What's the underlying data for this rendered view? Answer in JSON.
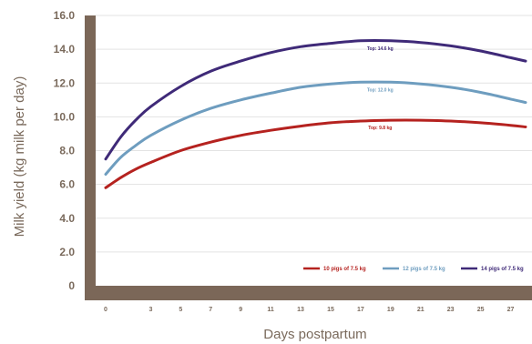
{
  "chart_data": {
    "type": "line",
    "xlabel": "Days postpartum",
    "ylabel": "Milk yield (kg milk per day)",
    "ylim": [
      0,
      16
    ],
    "yticks": [
      "0",
      "2.0",
      "4.0",
      "6.0",
      "8.0",
      "10.0",
      "12.0",
      "14.0",
      "16.0"
    ],
    "xticks": [
      "0",
      "3",
      "5",
      "7",
      "9",
      "11",
      "13",
      "15",
      "17",
      "19",
      "21",
      "23",
      "25",
      "27"
    ],
    "grid": true,
    "legend_position": "bottom-right",
    "series": [
      {
        "name": "10 pigs of 7.5 kg",
        "color": "#b5221f",
        "x": [
          0,
          1,
          2,
          3,
          5,
          7,
          9,
          11,
          13,
          15,
          17,
          19,
          21,
          23,
          25,
          27,
          28
        ],
        "values": [
          5.8,
          6.4,
          6.9,
          7.3,
          8.0,
          8.5,
          8.9,
          9.2,
          9.45,
          9.65,
          9.75,
          9.8,
          9.8,
          9.75,
          9.65,
          9.5,
          9.4
        ],
        "peak_label": "Top: 9.8 kg"
      },
      {
        "name": "12 pigs of 7.5 kg",
        "color": "#6e9dbf",
        "x": [
          0,
          1,
          2,
          3,
          5,
          7,
          9,
          11,
          13,
          15,
          17,
          19,
          21,
          23,
          25,
          27,
          28
        ],
        "values": [
          6.6,
          7.6,
          8.3,
          8.9,
          9.8,
          10.5,
          11.0,
          11.4,
          11.75,
          11.95,
          12.05,
          12.05,
          11.95,
          11.75,
          11.45,
          11.05,
          10.85
        ],
        "peak_label": "Top: 12.0 kg"
      },
      {
        "name": "14 pigs of 7.5 kg",
        "color": "#3f2a78",
        "x": [
          0,
          1,
          2,
          3,
          5,
          7,
          9,
          11,
          13,
          15,
          17,
          19,
          21,
          23,
          25,
          27,
          28
        ],
        "values": [
          7.5,
          8.8,
          9.8,
          10.6,
          11.8,
          12.7,
          13.3,
          13.8,
          14.15,
          14.35,
          14.5,
          14.5,
          14.4,
          14.2,
          13.9,
          13.5,
          13.3
        ],
        "peak_label": "Top: 14.6 kg"
      }
    ]
  }
}
